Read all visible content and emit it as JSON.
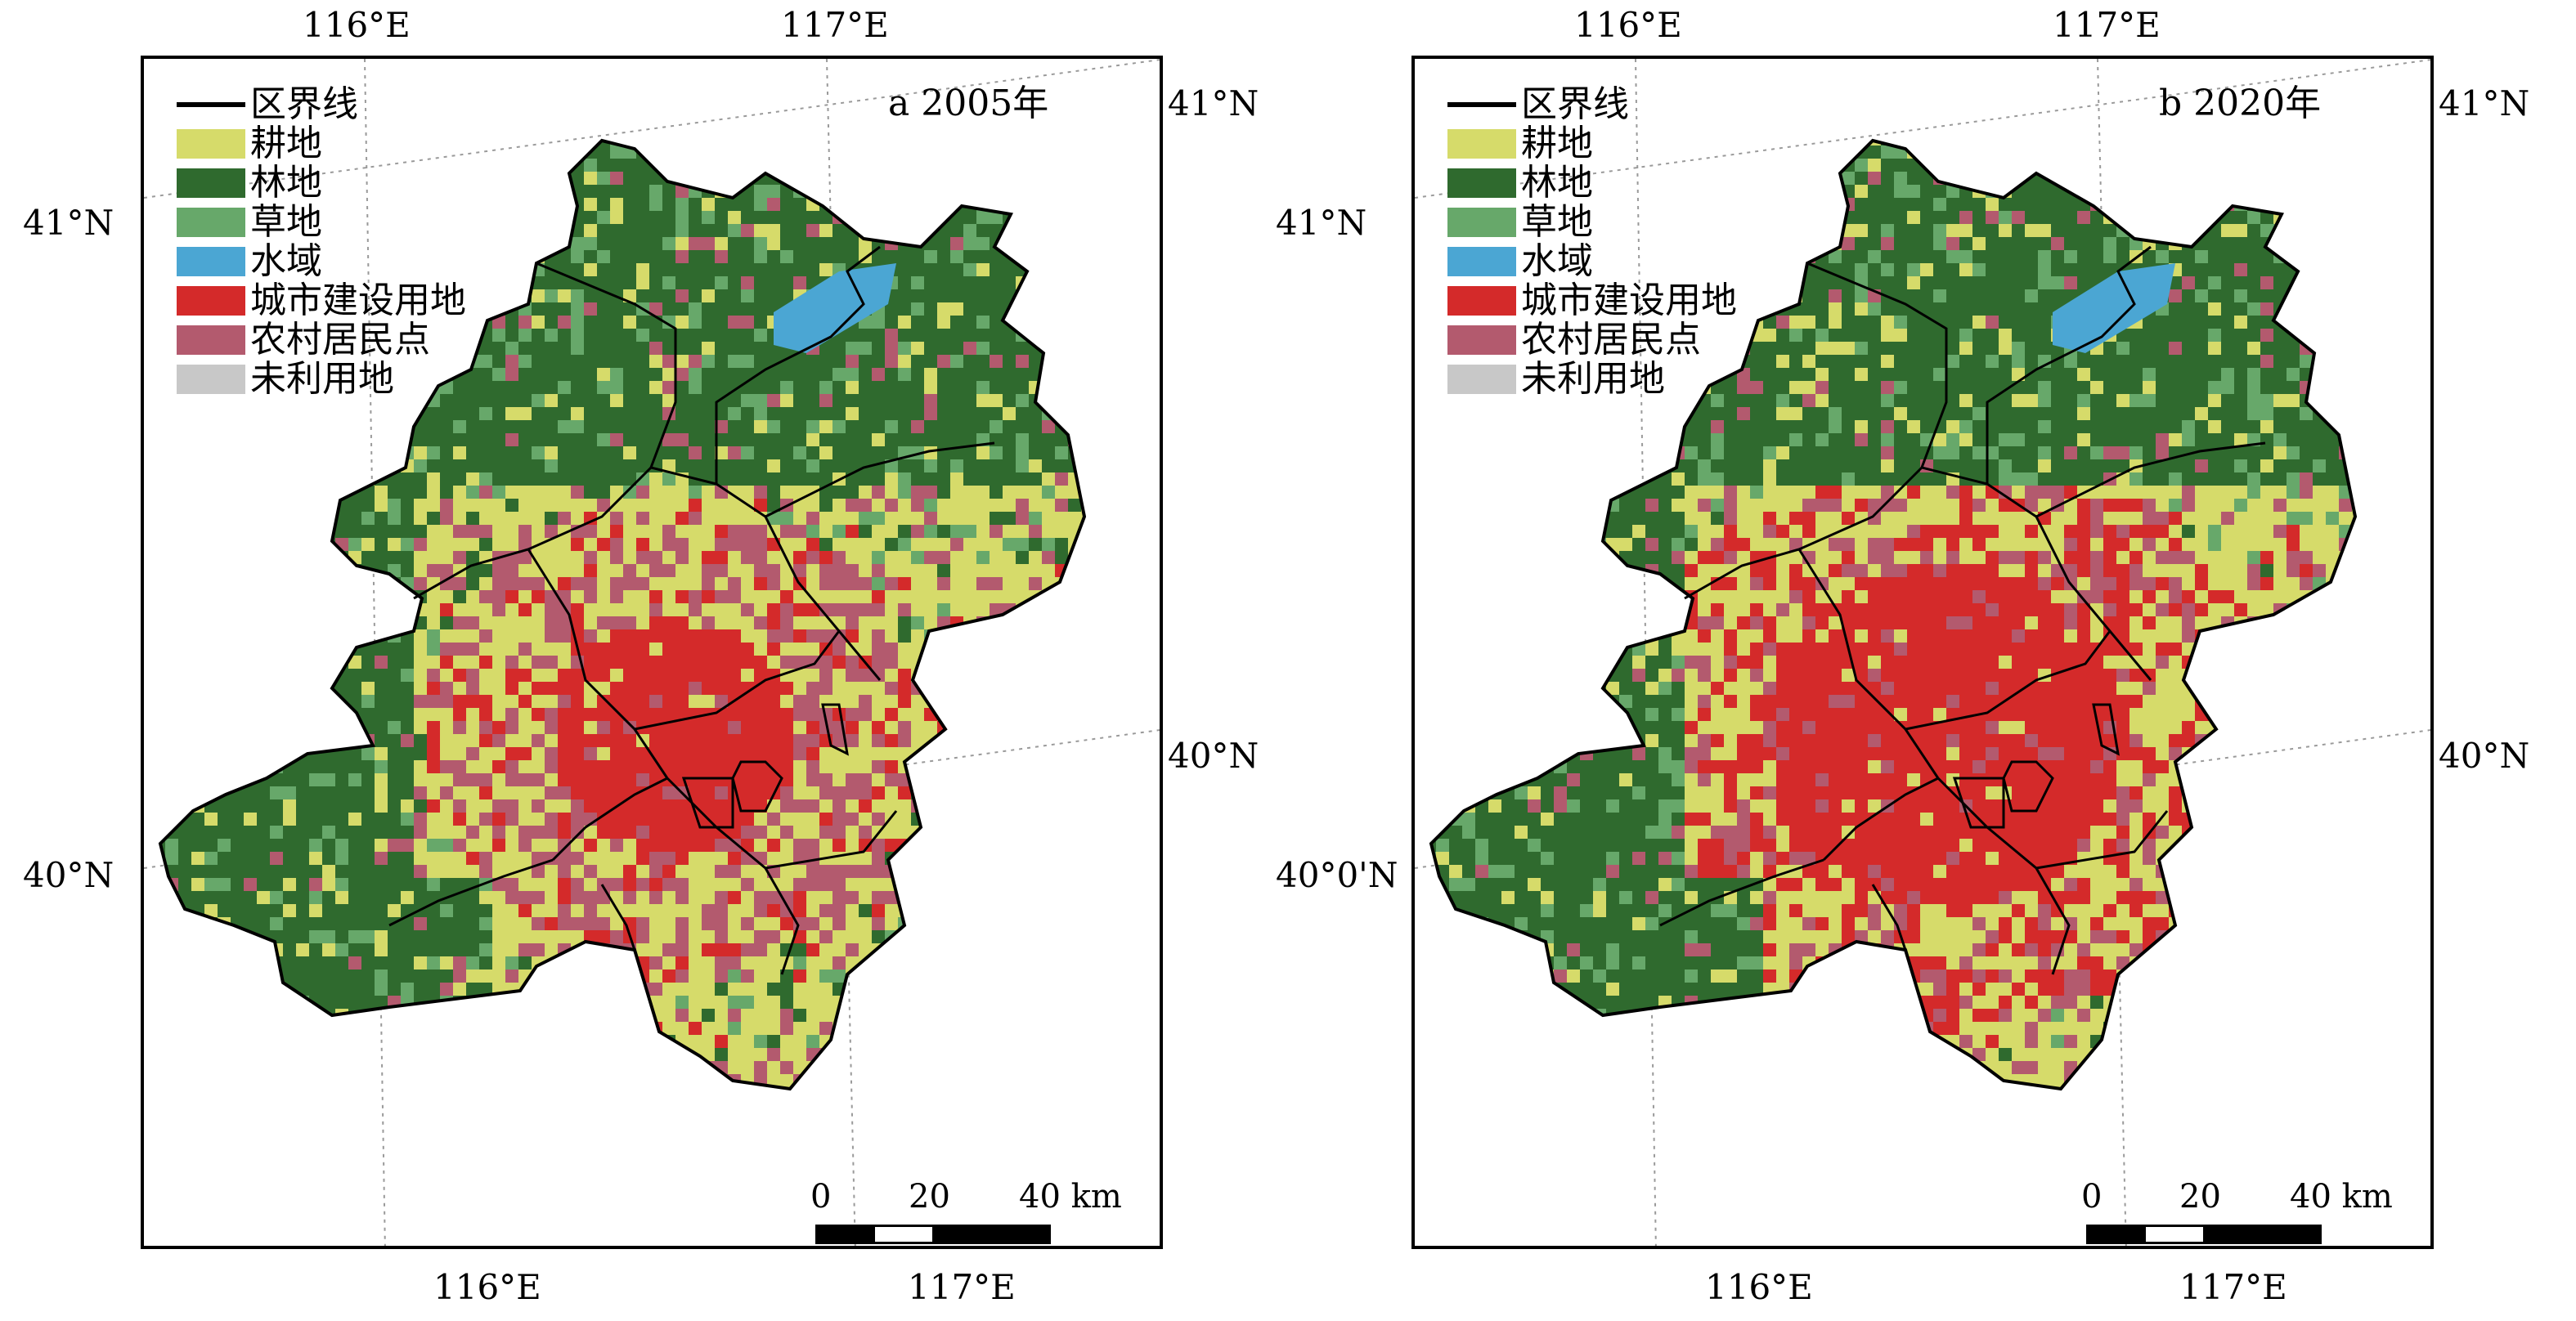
{
  "legend": {
    "items": [
      {
        "label": "区界线",
        "kind": "line",
        "color": "#000000"
      },
      {
        "label": "耕地",
        "kind": "fill",
        "color": "#d6db6a"
      },
      {
        "label": "林地",
        "kind": "fill",
        "color": "#2f6a2e"
      },
      {
        "label": "草地",
        "kind": "fill",
        "color": "#67a86a"
      },
      {
        "label": "水域",
        "kind": "fill",
        "color": "#4ba6d3"
      },
      {
        "label": "城市建设用地",
        "kind": "fill",
        "color": "#d42a2a"
      },
      {
        "label": "农村居民点",
        "kind": "fill",
        "color": "#b35a6e"
      },
      {
        "label": "未利用地",
        "kind": "fill",
        "color": "#c8c8c8"
      }
    ]
  },
  "panels": [
    {
      "title": "a 2005年",
      "coords": {
        "top_left_lon": "116°E",
        "top_right_lon": "117°E",
        "bottom_left_lon": "116°E",
        "bottom_right_lon": "117°E",
        "left_upper_lat": "41°N",
        "left_lower_lat": "40°N",
        "right_upper_lat": "41°N",
        "right_lower_lat": "40°N"
      },
      "scale": {
        "labels": [
          "0",
          "20",
          "40 km"
        ]
      }
    },
    {
      "title": "b 2020年",
      "coords": {
        "top_left_lon": "116°E",
        "top_right_lon": "117°E",
        "bottom_left_lon": "116°E",
        "bottom_right_lon": "117°E",
        "left_upper_lat": "41°N",
        "left_lower_lat": "40°0'N",
        "right_upper_lat": "41°N",
        "right_lower_lat": "40°N"
      },
      "scale": {
        "labels": [
          "0",
          "20",
          "40 km"
        ]
      }
    }
  ],
  "colors": {
    "cropland": "#d6db6a",
    "forest": "#2f6a2e",
    "grassland": "#67a86a",
    "water": "#4ba6d3",
    "urban": "#d42a2a",
    "rural": "#b35a6e",
    "unused": "#c8c8c8",
    "boundary": "#000000"
  }
}
